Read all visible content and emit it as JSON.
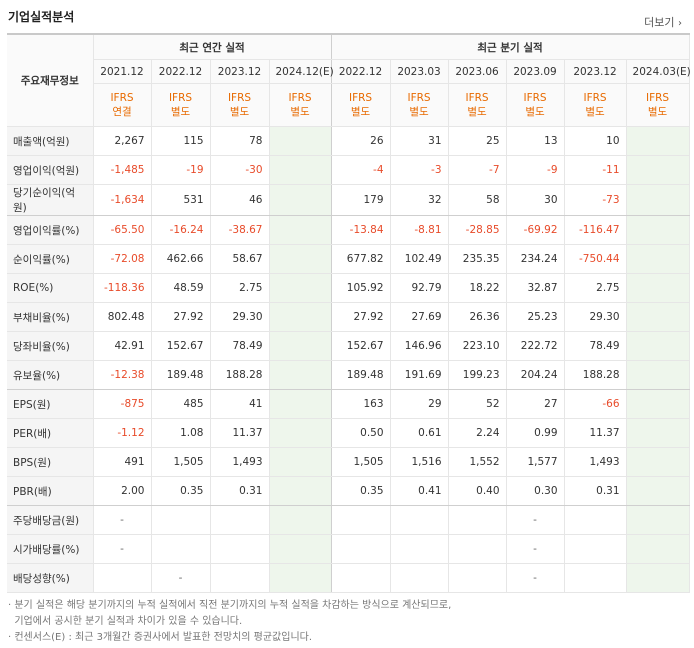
{
  "title": "기업실적분석",
  "more_label": "더보기",
  "table": {
    "row_header_title": "주요재무정보",
    "group_annual": "최근 연간 실적",
    "group_quarter": "최근 분기 실적",
    "periods": [
      "2021.12",
      "2022.12",
      "2023.12",
      "2024.12(E)",
      "2022.12",
      "2023.03",
      "2023.06",
      "2023.09",
      "2023.12",
      "2024.03(E)"
    ],
    "ifrs_top": "IFRS",
    "ifrs_types": [
      "연결",
      "별도",
      "별도",
      "별도",
      "별도",
      "별도",
      "별도",
      "별도",
      "별도",
      "별도"
    ],
    "rows": [
      {
        "label": "매출액(억원)",
        "values": [
          "2,267",
          "115",
          "78",
          "",
          "26",
          "31",
          "25",
          "13",
          "10",
          ""
        ]
      },
      {
        "label": "영업이익(억원)",
        "values": [
          "-1,485",
          "-19",
          "-30",
          "",
          "-4",
          "-3",
          "-7",
          "-9",
          "-11",
          ""
        ]
      },
      {
        "label": "당기순이익(억원)",
        "values": [
          "-1,634",
          "531",
          "46",
          "",
          "179",
          "32",
          "58",
          "30",
          "-73",
          ""
        ]
      },
      {
        "label": "영업이익률(%)",
        "values": [
          "-65.50",
          "-16.24",
          "-38.67",
          "",
          "-13.84",
          "-8.81",
          "-28.85",
          "-69.92",
          "-116.47",
          ""
        ]
      },
      {
        "label": "순이익률(%)",
        "values": [
          "-72.08",
          "462.66",
          "58.67",
          "",
          "677.82",
          "102.49",
          "235.35",
          "234.24",
          "-750.44",
          ""
        ]
      },
      {
        "label": "ROE(%)",
        "values": [
          "-118.36",
          "48.59",
          "2.75",
          "",
          "105.92",
          "92.79",
          "18.22",
          "32.87",
          "2.75",
          ""
        ]
      },
      {
        "label": "부채비율(%)",
        "values": [
          "802.48",
          "27.92",
          "29.30",
          "",
          "27.92",
          "27.69",
          "26.36",
          "25.23",
          "29.30",
          ""
        ]
      },
      {
        "label": "당좌비율(%)",
        "values": [
          "42.91",
          "152.67",
          "78.49",
          "",
          "152.67",
          "146.96",
          "223.10",
          "222.72",
          "78.49",
          ""
        ]
      },
      {
        "label": "유보율(%)",
        "values": [
          "-12.38",
          "189.48",
          "188.28",
          "",
          "189.48",
          "191.69",
          "199.23",
          "204.24",
          "188.28",
          ""
        ]
      },
      {
        "label": "EPS(원)",
        "values": [
          "-875",
          "485",
          "41",
          "",
          "163",
          "29",
          "52",
          "27",
          "-66",
          ""
        ]
      },
      {
        "label": "PER(배)",
        "values": [
          "-1.12",
          "1.08",
          "11.37",
          "",
          "0.50",
          "0.61",
          "2.24",
          "0.99",
          "11.37",
          ""
        ]
      },
      {
        "label": "BPS(원)",
        "values": [
          "491",
          "1,505",
          "1,493",
          "",
          "1,505",
          "1,516",
          "1,552",
          "1,577",
          "1,493",
          ""
        ]
      },
      {
        "label": "PBR(배)",
        "values": [
          "2.00",
          "0.35",
          "0.31",
          "",
          "0.35",
          "0.41",
          "0.40",
          "0.30",
          "0.31",
          ""
        ]
      },
      {
        "label": "주당배당금(원)",
        "values": [
          "-",
          "",
          "",
          "",
          "",
          "",
          "",
          "-",
          "",
          ""
        ]
      },
      {
        "label": "시가배당률(%)",
        "values": [
          "-",
          "",
          "",
          "",
          "",
          "",
          "",
          "-",
          "",
          ""
        ]
      },
      {
        "label": "배당성향(%)",
        "values": [
          "",
          "-",
          "",
          "",
          "",
          "",
          "",
          "-",
          "",
          ""
        ]
      }
    ]
  },
  "notes": [
    "· 분기 실적은 해당 분기까지의 누적 실적에서 직전 분기까지의 누적 실적을 차감하는 방식으로 계산되므로,",
    "  기업에서 공시한 분기 실적과 차이가 있을 수 있습니다.",
    "· 컨센서스(E) : 최근 3개월간 증권사에서 발표한 전망치의 평균값입니다."
  ],
  "colors": {
    "negative": "#e84b2a",
    "ifrs": "#e86a00",
    "estimate_bg": "#eef6ec",
    "estimate_text": "#3a8a2e"
  }
}
